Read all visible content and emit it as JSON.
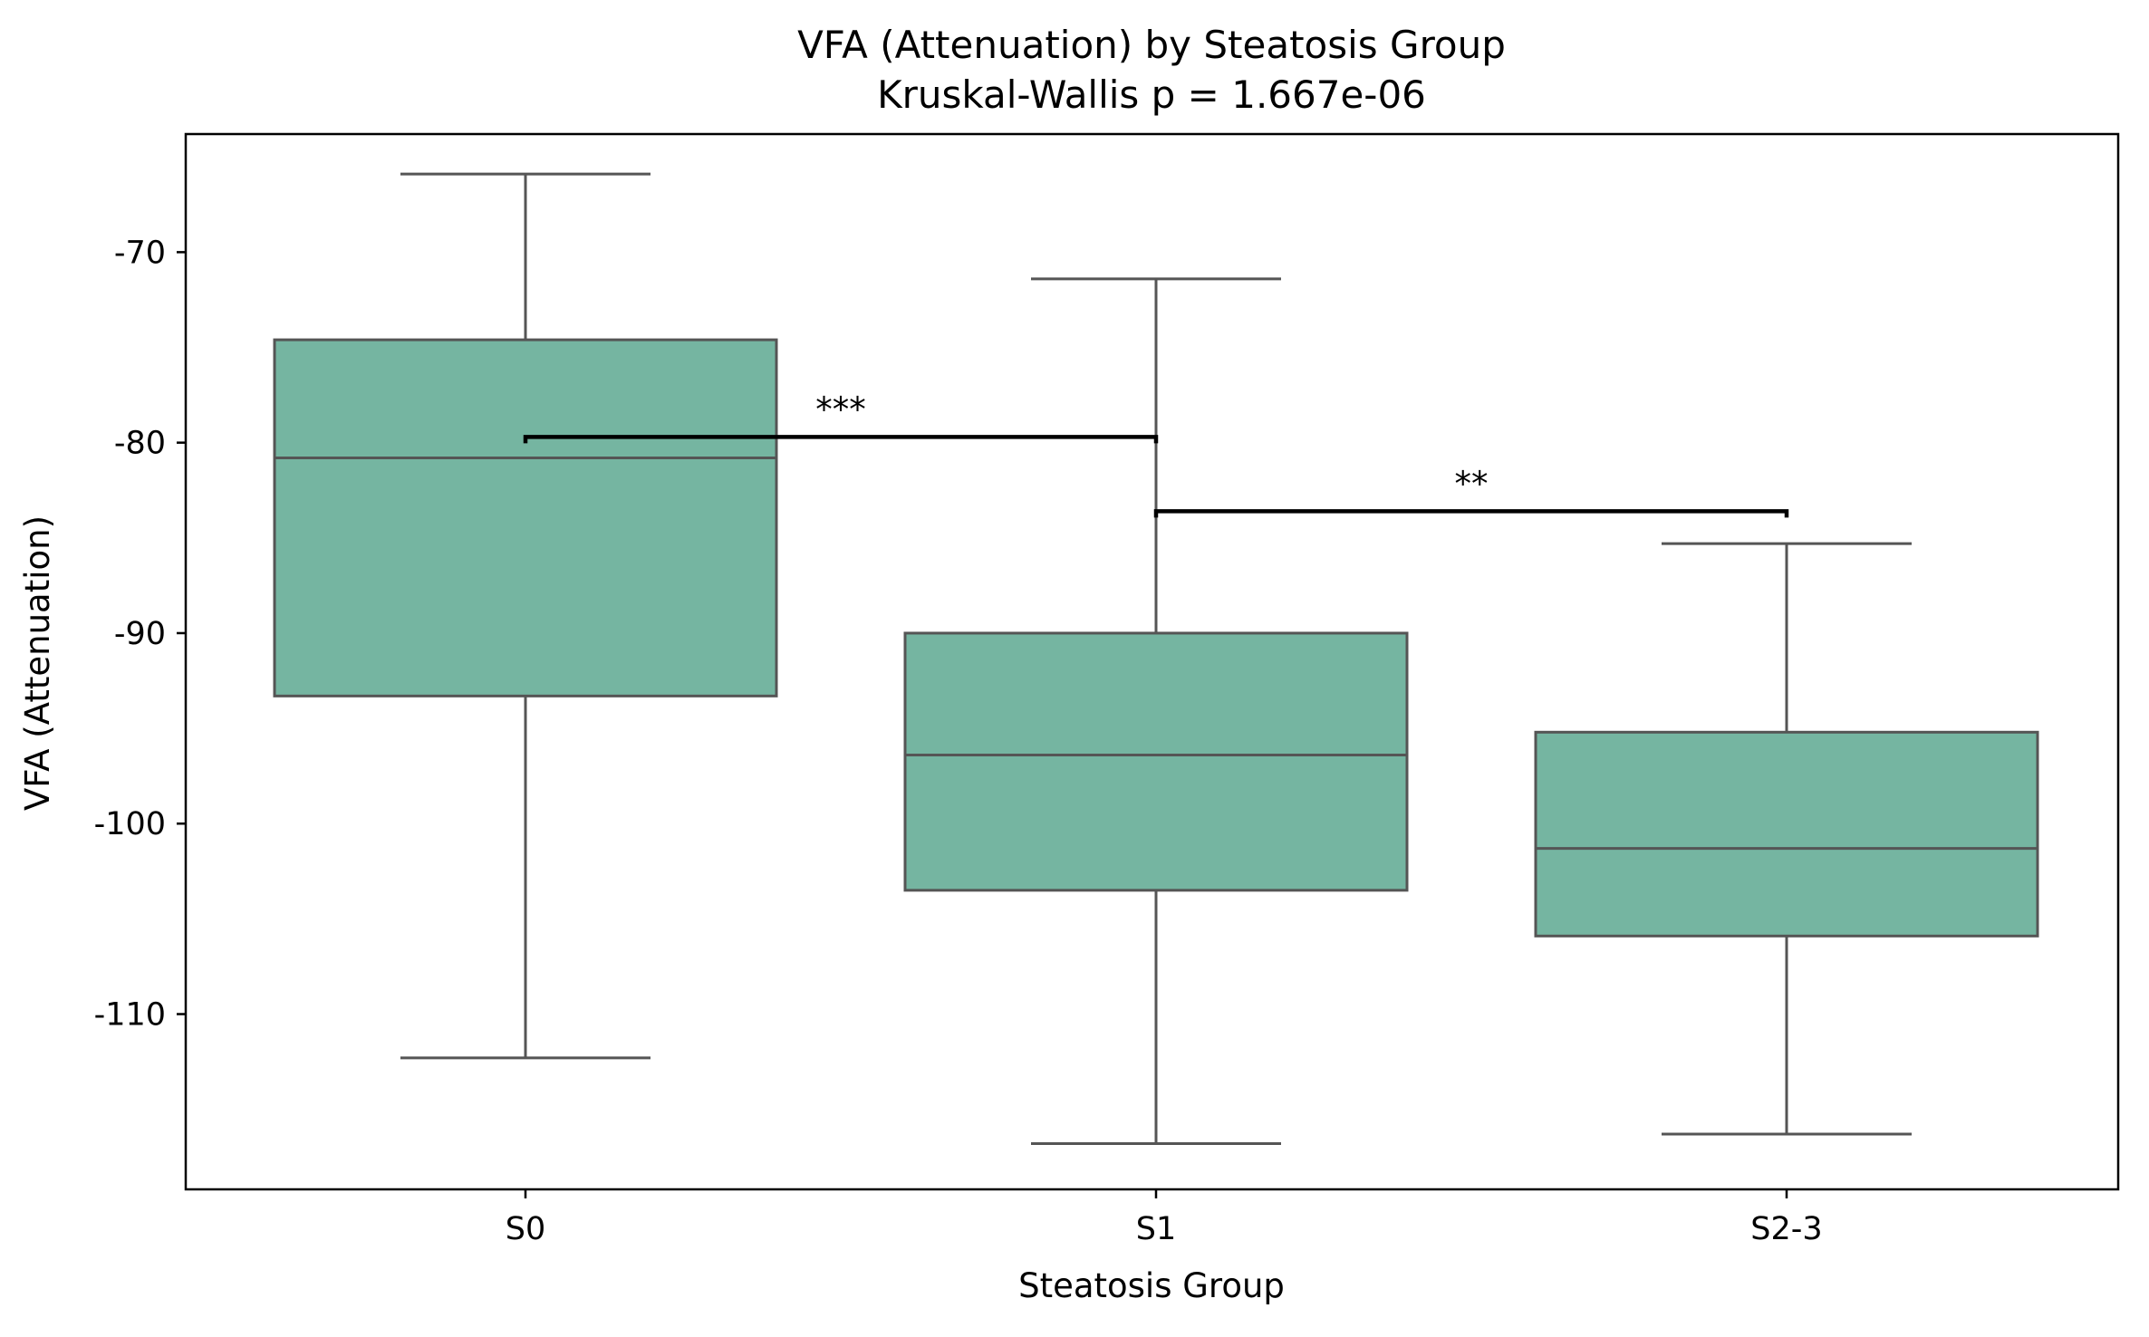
{
  "chart_data": {
    "type": "box",
    "title": "VFA (Attenuation) by Steatosis Group",
    "subtitle": "Kruskal-Wallis p = 1.667e-06",
    "xlabel": "Steatosis Group",
    "ylabel": "VFA (Attenuation)",
    "ylim": [
      -119.2,
      -63.8
    ],
    "yticks": [
      -70,
      -80,
      -90,
      -100,
      -110
    ],
    "categories": [
      "S0",
      "S1",
      "S2-3"
    ],
    "boxes": [
      {
        "category": "S0",
        "whisker_low": -112.3,
        "q1": -93.3,
        "median": -80.8,
        "q3": -74.6,
        "whisker_high": -65.9
      },
      {
        "category": "S1",
        "whisker_low": -116.8,
        "q1": -103.5,
        "median": -96.4,
        "q3": -90.0,
        "whisker_high": -71.4
      },
      {
        "category": "S2-3",
        "whisker_low": -116.3,
        "q1": -105.9,
        "median": -101.3,
        "q3": -95.2,
        "whisker_high": -85.3
      }
    ],
    "significance": [
      {
        "from": "S0",
        "to": "S1",
        "y": -79.7,
        "label": "***"
      },
      {
        "from": "S1",
        "to": "S2-3",
        "y": -83.6,
        "label": "**"
      }
    ],
    "colors": {
      "box_fill": "#75b5a1",
      "box_edge": "#555555",
      "bracket": "#000000",
      "axes": "#000000"
    },
    "grid": false
  }
}
